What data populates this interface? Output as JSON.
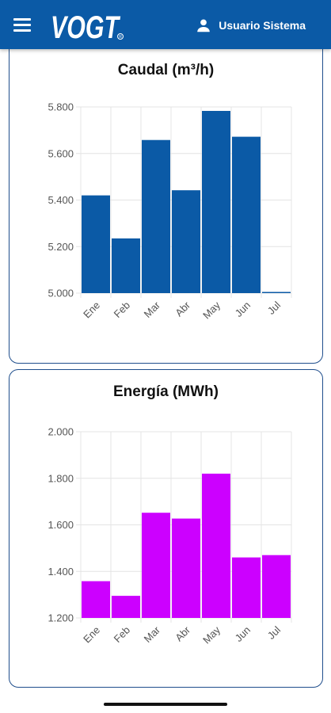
{
  "header": {
    "menu_icon": "menu-icon",
    "logo_text": "VOGT",
    "user_icon": "person-icon",
    "user_label": "Usuario Sistema",
    "bar_color": "#0b5aa6"
  },
  "chart_data": [
    {
      "type": "bar",
      "title": "Caudal (m³/h)",
      "categories": [
        "Ene",
        "Feb",
        "Mar",
        "Abr",
        "May",
        "Jun",
        "Jul"
      ],
      "values": [
        5420,
        5235,
        5658,
        5442,
        5783,
        5672,
        5005
      ],
      "ylim": [
        5000,
        5800
      ],
      "yticks": [
        "5.000",
        "5.200",
        "5.400",
        "5.600",
        "5.800"
      ],
      "ytick_values": [
        5000,
        5200,
        5400,
        5600,
        5800
      ],
      "color": "#0b5aa6",
      "grid": true
    },
    {
      "type": "bar",
      "title": "Energía (MWh)",
      "categories": [
        "Ene",
        "Feb",
        "Mar",
        "Abr",
        "May",
        "Jun",
        "Jul"
      ],
      "values": [
        1358,
        1295,
        1652,
        1627,
        1820,
        1460,
        1470
      ],
      "ylim": [
        1200,
        2000
      ],
      "yticks": [
        "1.200",
        "1.400",
        "1.600",
        "1.800",
        "2.000"
      ],
      "ytick_values": [
        1200,
        1400,
        1600,
        1800,
        2000
      ],
      "color": "#cc00ff",
      "grid": true
    }
  ]
}
